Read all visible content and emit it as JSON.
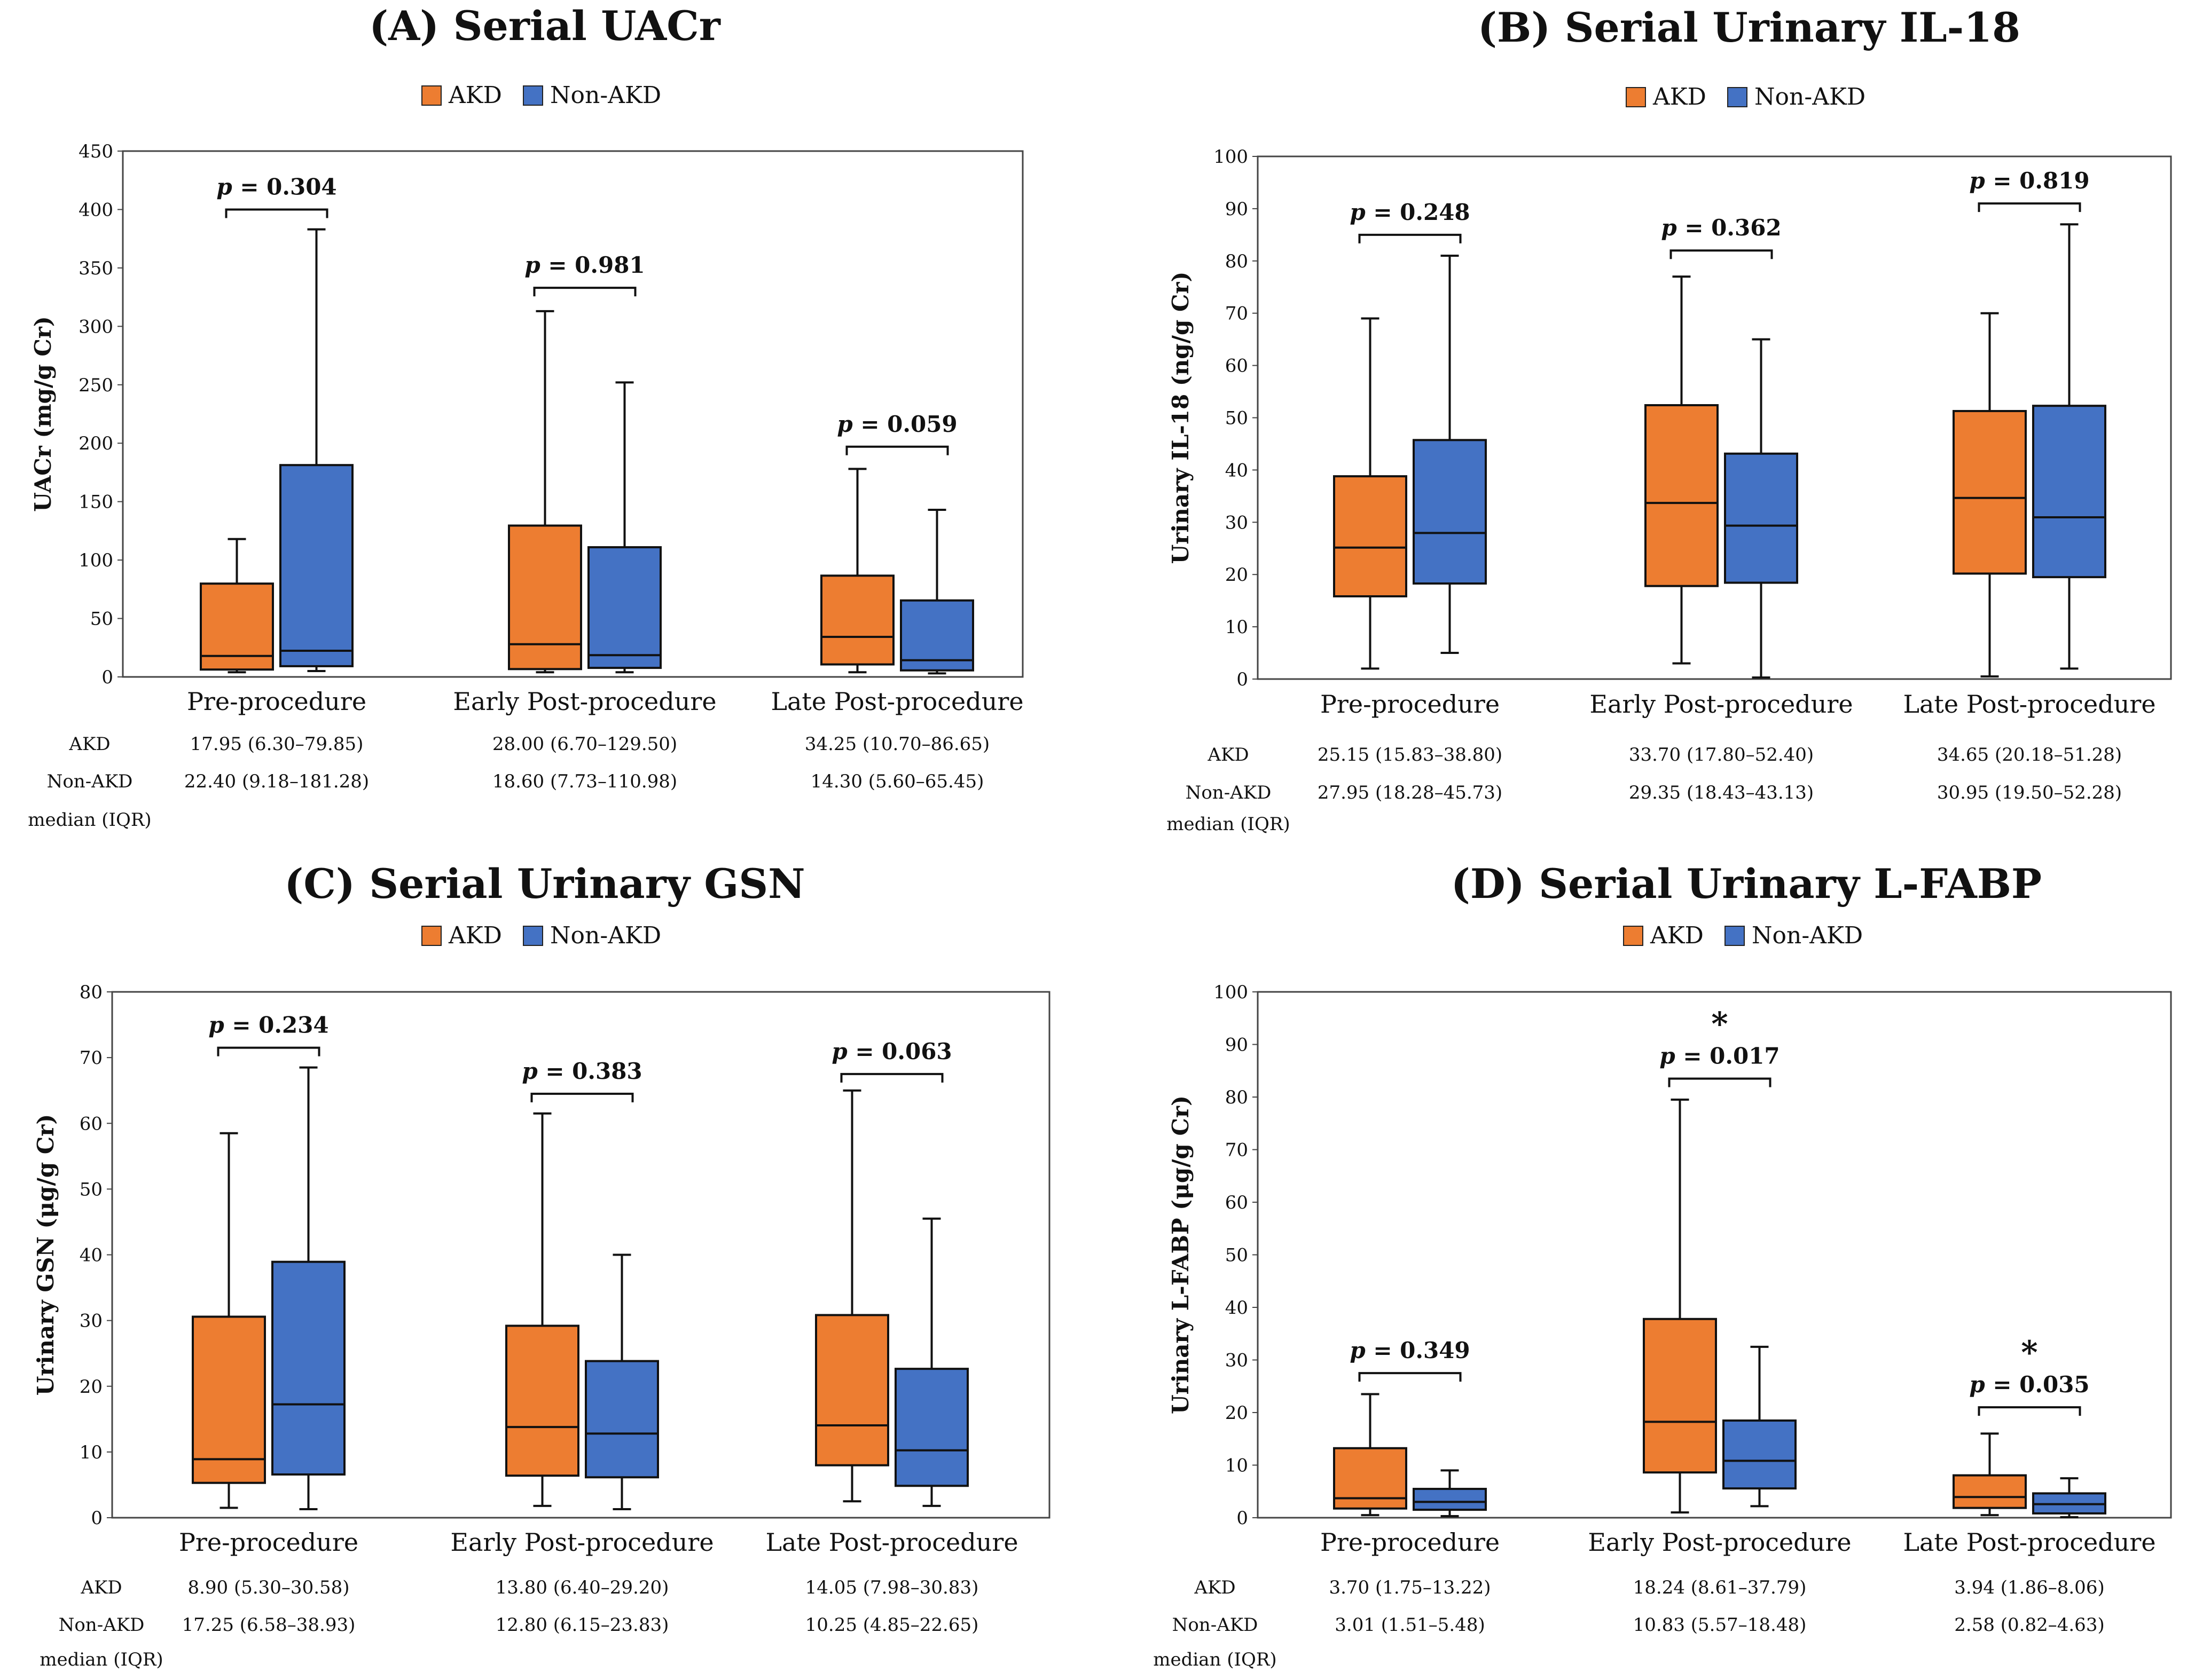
{
  "legend_colors": {
    "AKD": "#ED7D31",
    "Non-AKD": "#4472C4"
  },
  "chart_data": [
    {
      "type": "box",
      "title": "(A) Serial UACr",
      "ylabel": "UACr (mg/g Cr)",
      "ylim": [
        0,
        450
      ],
      "yticks": [
        0,
        50,
        100,
        150,
        200,
        250,
        300,
        350,
        400,
        450
      ],
      "categories": [
        "Pre-procedure",
        "Early Post-procedure",
        "Late Post-procedure"
      ],
      "legend": [
        "AKD",
        "Non-AKD"
      ],
      "series": [
        {
          "name": "AKD",
          "boxes": [
            {
              "min": 4,
              "q1": 6.3,
              "median": 17.95,
              "q3": 79.85,
              "max": 118
            },
            {
              "min": 4,
              "q1": 6.7,
              "median": 28.0,
              "q3": 129.5,
              "max": 313
            },
            {
              "min": 4,
              "q1": 10.7,
              "median": 34.25,
              "q3": 86.65,
              "max": 178
            }
          ]
        },
        {
          "name": "Non-AKD",
          "boxes": [
            {
              "min": 5,
              "q1": 9.18,
              "median": 22.4,
              "q3": 181.28,
              "max": 383
            },
            {
              "min": 4,
              "q1": 7.73,
              "median": 18.6,
              "q3": 110.98,
              "max": 252
            },
            {
              "min": 3,
              "q1": 5.6,
              "median": 14.3,
              "q3": 65.45,
              "max": 143
            }
          ]
        }
      ],
      "p_values": [
        {
          "text": "p",
          "value": " = 0.304",
          "bracket_y": 400,
          "star": ""
        },
        {
          "text": "p",
          "value": " = 0.981",
          "bracket_y": 333,
          "star": ""
        },
        {
          "text": "p",
          "value": " = 0.059",
          "bracket_y": 197,
          "star": ""
        }
      ],
      "table": {
        "rows": [
          {
            "label": "AKD",
            "values": [
              "17.95 (6.30–79.85)",
              "28.00 (6.70–129.50)",
              "34.25 (10.70–86.65)"
            ]
          },
          {
            "label": "Non-AKD",
            "values": [
              "22.40 (9.18–181.28)",
              "18.60 (7.73–110.98)",
              "14.30 (5.60–65.45)"
            ]
          }
        ],
        "footer": "median (IQR)"
      }
    },
    {
      "type": "box",
      "title": "(B) Serial Urinary IL-18",
      "ylabel": "Urinary IL-18 (ng/g Cr)",
      "ylim": [
        0,
        100
      ],
      "yticks": [
        0,
        10,
        20,
        30,
        40,
        50,
        60,
        70,
        80,
        90,
        100
      ],
      "categories": [
        "Pre-procedure",
        "Early Post-procedure",
        "Late Post-procedure"
      ],
      "legend": [
        "AKD",
        "Non-AKD"
      ],
      "series": [
        {
          "name": "AKD",
          "boxes": [
            {
              "min": 2,
              "q1": 15.83,
              "median": 25.15,
              "q3": 38.8,
              "max": 69
            },
            {
              "min": 3,
              "q1": 17.8,
              "median": 33.7,
              "q3": 52.4,
              "max": 77
            },
            {
              "min": 0.5,
              "q1": 20.18,
              "median": 34.65,
              "q3": 51.28,
              "max": 70
            }
          ]
        },
        {
          "name": "Non-AKD",
          "boxes": [
            {
              "min": 5,
              "q1": 18.28,
              "median": 27.95,
              "q3": 45.73,
              "max": 81
            },
            {
              "min": 0.3,
              "q1": 18.43,
              "median": 29.35,
              "q3": 43.13,
              "max": 65
            },
            {
              "min": 2,
              "q1": 19.5,
              "median": 30.95,
              "q3": 52.28,
              "max": 87
            }
          ]
        }
      ],
      "p_values": [
        {
          "text": "p",
          "value": " = 0.248",
          "bracket_y": 85,
          "star": ""
        },
        {
          "text": "p",
          "value": " = 0.362",
          "bracket_y": 82,
          "star": ""
        },
        {
          "text": "p",
          "value": " = 0.819",
          "bracket_y": 91,
          "star": ""
        }
      ],
      "table": {
        "rows": [
          {
            "label": "AKD",
            "values": [
              "25.15 (15.83–38.80)",
              "33.70 (17.80–52.40)",
              "34.65 (20.18–51.28)"
            ]
          },
          {
            "label": "Non-AKD",
            "values": [
              "27.95 (18.28–45.73)",
              "29.35 (18.43–43.13)",
              "30.95 (19.50–52.28)"
            ]
          }
        ],
        "footer": "median (IQR)"
      }
    },
    {
      "type": "box",
      "title": "(C) Serial Urinary GSN",
      "ylabel": "Urinary GSN (μg/g Cr)",
      "ylim": [
        0,
        80
      ],
      "yticks": [
        0,
        10,
        20,
        30,
        40,
        50,
        60,
        70,
        80
      ],
      "categories": [
        "Pre-procedure",
        "Early Post-procedure",
        "Late Post-procedure"
      ],
      "legend": [
        "AKD",
        "Non-AKD"
      ],
      "series": [
        {
          "name": "AKD",
          "boxes": [
            {
              "min": 1.5,
              "q1": 5.3,
              "median": 8.9,
              "q3": 30.58,
              "max": 58.5
            },
            {
              "min": 1.8,
              "q1": 6.4,
              "median": 13.8,
              "q3": 29.2,
              "max": 61.5
            },
            {
              "min": 2.5,
              "q1": 7.98,
              "median": 14.05,
              "q3": 30.83,
              "max": 65
            }
          ]
        },
        {
          "name": "Non-AKD",
          "boxes": [
            {
              "min": 1.3,
              "q1": 6.58,
              "median": 17.25,
              "q3": 38.93,
              "max": 68.5
            },
            {
              "min": 1.3,
              "q1": 6.15,
              "median": 12.8,
              "q3": 23.83,
              "max": 40
            },
            {
              "min": 1.8,
              "q1": 4.85,
              "median": 10.25,
              "q3": 22.65,
              "max": 45.5
            }
          ]
        }
      ],
      "p_values": [
        {
          "text": "p",
          "value": " = 0.234",
          "bracket_y": 71.5,
          "star": ""
        },
        {
          "text": "p",
          "value": " = 0.383",
          "bracket_y": 64.5,
          "star": ""
        },
        {
          "text": "p",
          "value": " = 0.063",
          "bracket_y": 67.5,
          "star": ""
        }
      ],
      "table": {
        "rows": [
          {
            "label": "AKD",
            "values": [
              "8.90 (5.30–30.58)",
              "13.80 (6.40–29.20)",
              "14.05 (7.98–30.83)"
            ]
          },
          {
            "label": "Non-AKD",
            "values": [
              "17.25 (6.58–38.93)",
              "12.80 (6.15–23.83)",
              "10.25 (4.85–22.65)"
            ]
          }
        ],
        "footer": "median (IQR)"
      }
    },
    {
      "type": "box",
      "title": "(D) Serial Urinary L-FABP",
      "ylabel": "Urinary L-FABP (μg/g Cr)",
      "ylim": [
        0,
        100
      ],
      "yticks": [
        0,
        10,
        20,
        30,
        40,
        50,
        60,
        70,
        80,
        90,
        100
      ],
      "categories": [
        "Pre-procedure",
        "Early Post-procedure",
        "Late Post-procedure"
      ],
      "legend": [
        "AKD",
        "Non-AKD"
      ],
      "series": [
        {
          "name": "AKD",
          "boxes": [
            {
              "min": 0.5,
              "q1": 1.75,
              "median": 3.7,
              "q3": 13.22,
              "max": 23.5
            },
            {
              "min": 1,
              "q1": 8.61,
              "median": 18.24,
              "q3": 37.79,
              "max": 79.5
            },
            {
              "min": 0.5,
              "q1": 1.86,
              "median": 3.94,
              "q3": 8.06,
              "max": 16
            }
          ]
        },
        {
          "name": "Non-AKD",
          "boxes": [
            {
              "min": 0.3,
              "q1": 1.51,
              "median": 3.01,
              "q3": 5.48,
              "max": 9
            },
            {
              "min": 2.2,
              "q1": 5.57,
              "median": 10.83,
              "q3": 18.48,
              "max": 32.5
            },
            {
              "min": 0.1,
              "q1": 0.82,
              "median": 2.58,
              "q3": 4.63,
              "max": 7.5
            }
          ]
        }
      ],
      "p_values": [
        {
          "text": "p",
          "value": " = 0.349",
          "bracket_y": 27.5,
          "star": ""
        },
        {
          "text": "p",
          "value": " = 0.017",
          "bracket_y": 83.5,
          "star": "*"
        },
        {
          "text": "p",
          "value": " = 0.035",
          "bracket_y": 21,
          "star": "*"
        }
      ],
      "table": {
        "rows": [
          {
            "label": "AKD",
            "values": [
              "3.70 (1.75–13.22)",
              "18.24 (8.61–37.79)",
              "3.94 (1.86–8.06)"
            ]
          },
          {
            "label": "Non-AKD",
            "values": [
              "3.01 (1.51–5.48)",
              "10.83 (5.57–18.48)",
              "2.58 (0.82–4.63)"
            ]
          }
        ],
        "footer": "median (IQR)"
      }
    }
  ]
}
